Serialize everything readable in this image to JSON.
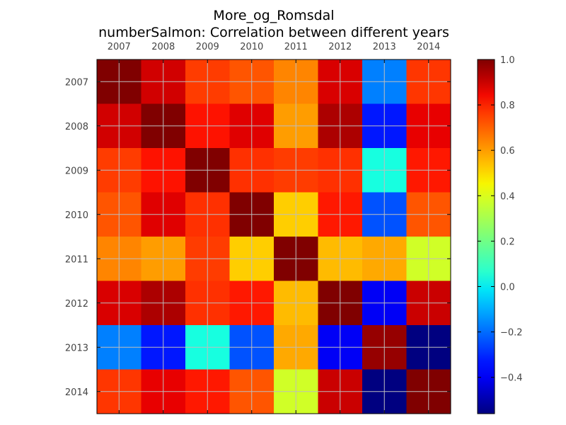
{
  "chart_data": {
    "type": "heatmap",
    "title": "More_og_Romsdal",
    "subtitle": "numberSalmon: Correlation between different years",
    "x_categories": [
      "2007",
      "2008",
      "2009",
      "2010",
      "2011",
      "2012",
      "2013",
      "2014"
    ],
    "y_categories": [
      "2007",
      "2008",
      "2009",
      "2010",
      "2011",
      "2012",
      "2013",
      "2014"
    ],
    "x_ticks_position": "top",
    "values": [
      [
        1.0,
        0.89,
        0.76,
        0.72,
        0.64,
        0.88,
        -0.17,
        0.77
      ],
      [
        0.89,
        1.0,
        0.83,
        0.87,
        0.6,
        0.94,
        -0.33,
        0.86
      ],
      [
        0.76,
        0.83,
        1.0,
        0.78,
        0.76,
        0.78,
        0.03,
        0.82
      ],
      [
        0.72,
        0.87,
        0.78,
        1.0,
        0.52,
        0.82,
        -0.24,
        0.72
      ],
      [
        0.64,
        0.6,
        0.76,
        0.52,
        1.0,
        0.55,
        0.58,
        0.38
      ],
      [
        0.88,
        0.94,
        0.78,
        0.82,
        0.55,
        1.0,
        -0.4,
        0.9
      ],
      [
        -0.17,
        -0.33,
        0.03,
        -0.24,
        0.58,
        -0.4,
        0.97,
        -0.56
      ],
      [
        0.77,
        0.86,
        0.82,
        0.72,
        0.38,
        0.9,
        -0.56,
        1.0
      ]
    ],
    "colorbar": {
      "min": -0.56,
      "max": 1.0,
      "ticks": [
        -0.4,
        -0.2,
        0.0,
        0.2,
        0.4,
        0.6,
        0.8,
        1.0
      ],
      "tick_labels": [
        "−0.4",
        "−0.2",
        "0.0",
        "0.2",
        "0.4",
        "0.6",
        "0.8",
        "1.0"
      ],
      "colormap": "jet"
    },
    "grid": true,
    "legend": "colorbar-right"
  }
}
